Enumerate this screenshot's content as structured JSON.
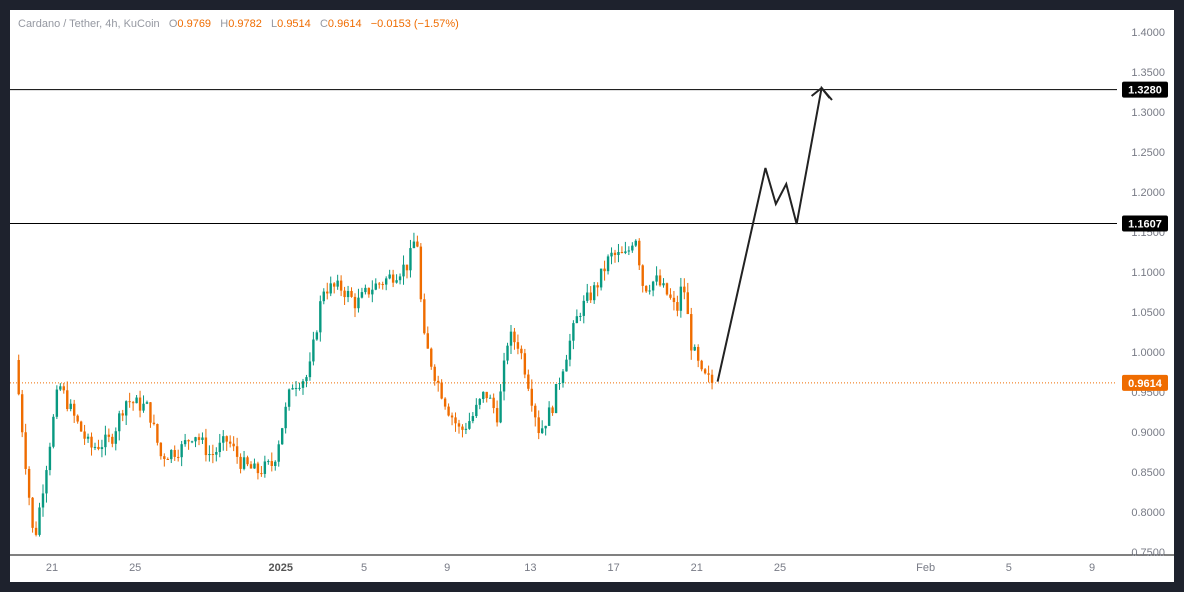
{
  "header": {
    "symbol": "Cardano / Tether, 4h, KuCoin",
    "open_label": "O",
    "open": "0.9769",
    "high_label": "H",
    "high": "0.9782",
    "low_label": "L",
    "low": "0.9514",
    "close_label": "C",
    "close": "0.9614",
    "change": "−0.0153 (−1.57%)"
  },
  "chart_data": {
    "type": "candlestick",
    "y_range": [
      0.745,
      1.43
    ],
    "y_ticks": [
      "1.4000",
      "1.3500",
      "1.3000",
      "1.2500",
      "1.2000",
      "1.1500",
      "1.1000",
      "1.0500",
      "1.0000",
      "0.9500",
      "0.9000",
      "0.8500",
      "0.8000",
      "0.7500"
    ],
    "x_ticks": [
      {
        "label": "21",
        "day": 0
      },
      {
        "label": "25",
        "day": 4
      },
      {
        "label": "2025",
        "day": 11,
        "bold": true
      },
      {
        "label": "5",
        "day": 15
      },
      {
        "label": "9",
        "day": 19
      },
      {
        "label": "13",
        "day": 23
      },
      {
        "label": "17",
        "day": 27
      },
      {
        "label": "21",
        "day": 31
      },
      {
        "label": "25",
        "day": 35
      },
      {
        "label": "Feb",
        "day": 42
      },
      {
        "label": "5",
        "day": 46
      },
      {
        "label": "9",
        "day": 50
      }
    ],
    "horizontal_lines": [
      {
        "value": 1.328,
        "label": "1.3280",
        "color": "#000000"
      },
      {
        "value": 1.1607,
        "label": "1.1607",
        "color": "#000000"
      }
    ],
    "last_price": {
      "value": 0.9614,
      "label": "0.9614",
      "color": "#ef6c00"
    },
    "key_points": [
      [
        -1.6,
        0.99
      ],
      [
        -0.7,
        0.76
      ],
      [
        0.5,
        0.96
      ],
      [
        1.2,
        0.92
      ],
      [
        2,
        0.88
      ],
      [
        3,
        0.89
      ],
      [
        3.7,
        0.94
      ],
      [
        4.8,
        0.93
      ],
      [
        5.4,
        0.87
      ],
      [
        6.4,
        0.88
      ],
      [
        7,
        0.9
      ],
      [
        7.8,
        0.87
      ],
      [
        8.6,
        0.89
      ],
      [
        9.3,
        0.86
      ],
      [
        10,
        0.85
      ],
      [
        10.8,
        0.86
      ],
      [
        11.7,
        0.96
      ],
      [
        12.5,
        0.97
      ],
      [
        13.2,
        1.08
      ],
      [
        14.1,
        1.08
      ],
      [
        14.8,
        1.06
      ],
      [
        15.5,
        1.08
      ],
      [
        16.2,
        1.09
      ],
      [
        17.3,
        1.11
      ],
      [
        17.7,
        1.15
      ],
      [
        18,
        1.02
      ],
      [
        18.6,
        0.97
      ],
      [
        19.2,
        0.93
      ],
      [
        19.8,
        0.9
      ],
      [
        20.4,
        0.92
      ],
      [
        21,
        0.95
      ],
      [
        21.6,
        0.92
      ],
      [
        22.1,
        1.02
      ],
      [
        22.6,
        1.01
      ],
      [
        23,
        0.97
      ],
      [
        23.6,
        0.9
      ],
      [
        24.2,
        0.93
      ],
      [
        24.8,
        0.99
      ],
      [
        25.5,
        1.05
      ],
      [
        26.3,
        1.08
      ],
      [
        27,
        1.12
      ],
      [
        27.8,
        1.12
      ],
      [
        28.2,
        1.15
      ],
      [
        28.6,
        1.08
      ],
      [
        29.2,
        1.09
      ],
      [
        29.8,
        1.07
      ],
      [
        30.2,
        1.05
      ],
      [
        30.5,
        1.09
      ],
      [
        30.9,
        1.01
      ],
      [
        31.4,
        0.97
      ],
      [
        31.9,
        0.962
      ]
    ],
    "projection": [
      [
        32,
        0.963
      ],
      [
        34.3,
        1.23
      ],
      [
        34.8,
        1.185
      ],
      [
        35.3,
        1.21
      ],
      [
        35.8,
        1.16
      ],
      [
        37,
        1.33
      ],
      [
        37.5,
        1.315
      ]
    ]
  }
}
